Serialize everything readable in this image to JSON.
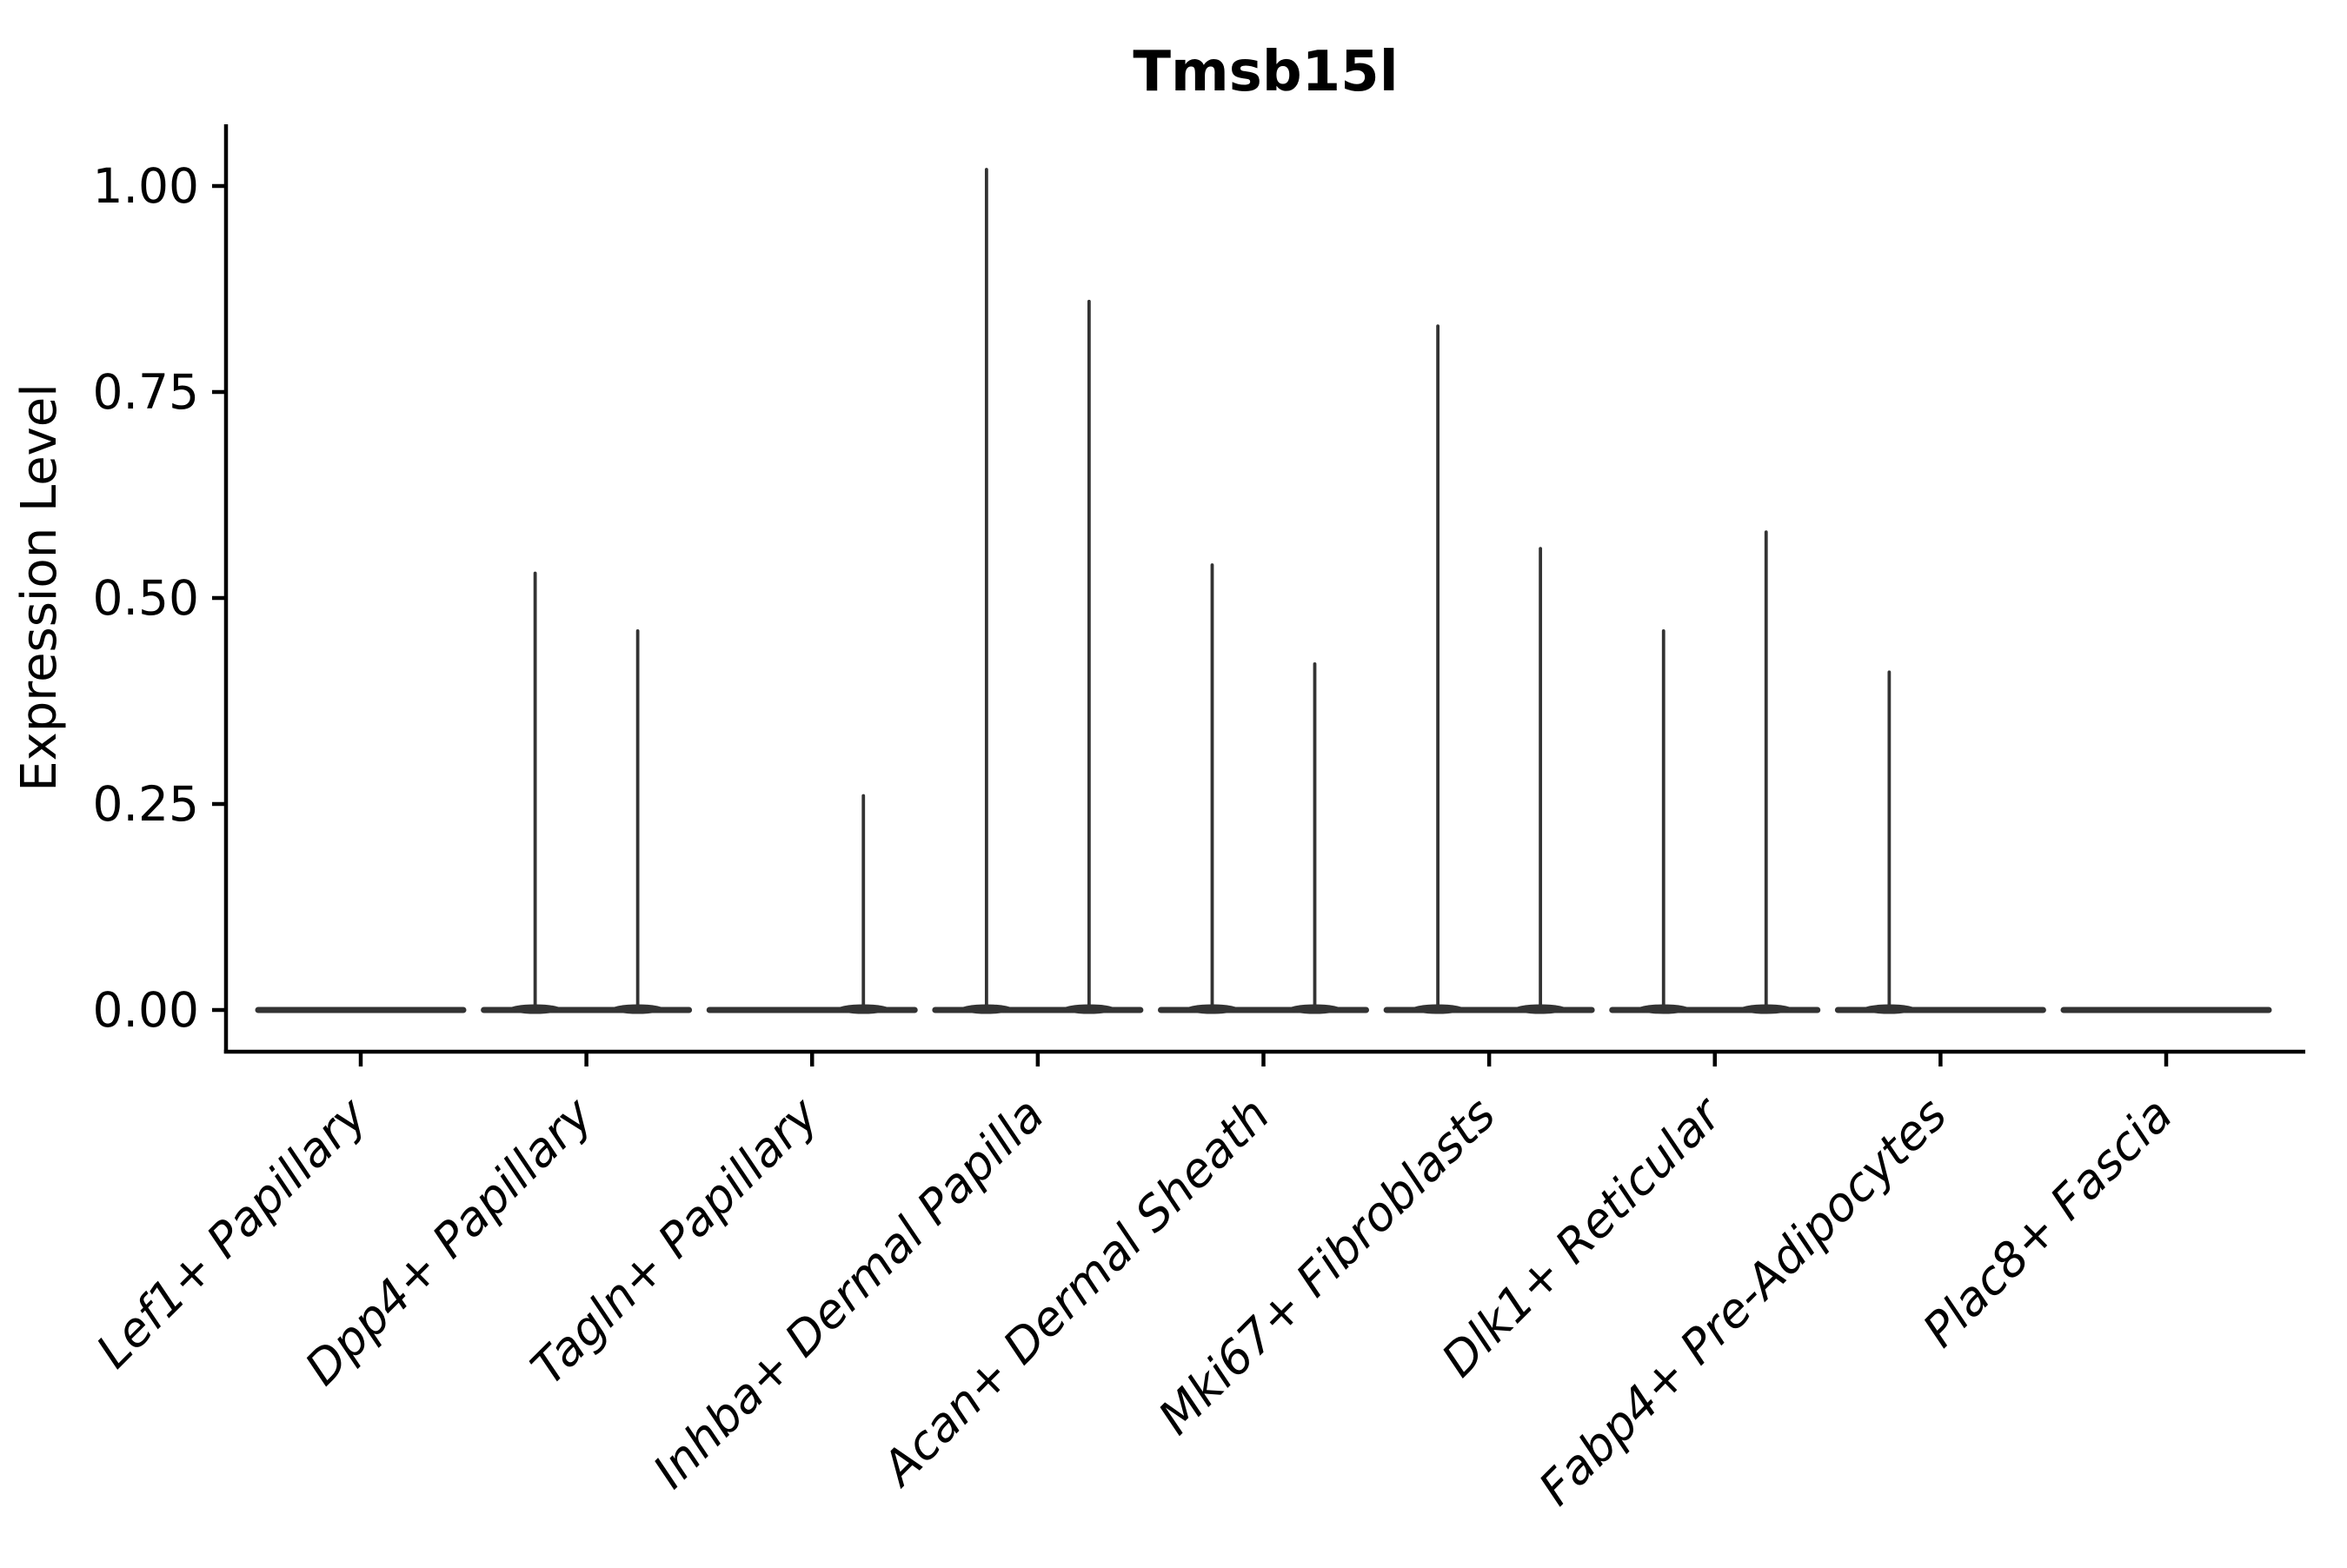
{
  "title": "Tmsb15l",
  "y_axis": {
    "label": "Expression Level",
    "tick_labels": [
      "0.00",
      "0.25",
      "0.50",
      "0.75",
      "1.00"
    ]
  },
  "x_axis": {
    "categories": [
      "Lef1+ Papillary",
      "Dpp4+ Papillary",
      "Tagln+ Papillary",
      "Inhba+ Dermal Papilla",
      "Acan+ Dermal Sheath",
      "Mki67+ Fibroblasts",
      "Dlk1+ Reticular",
      "Fabp4+ Pre-Adipocytes",
      "Plac8+ Fascia"
    ]
  },
  "chart_data": {
    "type": "violin",
    "title": "Tmsb15l",
    "xlabel": "",
    "ylabel": "Expression Level",
    "ylim": [
      0,
      1.07
    ],
    "yticks": [
      0,
      0.25,
      0.5,
      0.75,
      1.0
    ],
    "ytick_labels": [
      "0.00",
      "0.25",
      "0.50",
      "0.75",
      "1.00"
    ],
    "grid": false,
    "legend": "none",
    "baseline_value": 0.0,
    "categories": [
      "Lef1+ Papillary",
      "Dpp4+ Papillary",
      "Tagln+ Papillary",
      "Inhba+ Dermal Papilla",
      "Acan+ Dermal Sheath",
      "Mki67+ Fibroblasts",
      "Dlk1+ Reticular",
      "Fabp4+ Pre-Adipocytes",
      "Plac8+ Fascia"
    ],
    "violins": [
      {
        "category": "Lef1+ Papillary",
        "spikes": []
      },
      {
        "category": "Dpp4+ Papillary",
        "spikes": [
          {
            "position": "left",
            "max": 0.53
          },
          {
            "position": "right",
            "max": 0.46
          }
        ]
      },
      {
        "category": "Tagln+ Papillary",
        "spikes": [
          {
            "position": "right",
            "max": 0.26
          }
        ]
      },
      {
        "category": "Inhba+ Dermal Papilla",
        "spikes": [
          {
            "position": "left",
            "max": 1.02
          },
          {
            "position": "right",
            "max": 0.86
          }
        ]
      },
      {
        "category": "Acan+ Dermal Sheath",
        "spikes": [
          {
            "position": "left",
            "max": 0.54
          },
          {
            "position": "right",
            "max": 0.42
          }
        ]
      },
      {
        "category": "Mki67+ Fibroblasts",
        "spikes": [
          {
            "position": "left",
            "max": 0.83
          },
          {
            "position": "right",
            "max": 0.56
          }
        ]
      },
      {
        "category": "Dlk1+ Reticular",
        "spikes": [
          {
            "position": "left",
            "max": 0.46
          },
          {
            "position": "right",
            "max": 0.58
          }
        ]
      },
      {
        "category": "Fabp4+ Pre-Adipocytes",
        "spikes": [
          {
            "position": "left",
            "max": 0.41
          }
        ]
      },
      {
        "category": "Plac8+ Fascia",
        "spikes": []
      }
    ],
    "colors": {
      "violin": "#333333",
      "axis": "#000000",
      "background": "#ffffff"
    }
  }
}
